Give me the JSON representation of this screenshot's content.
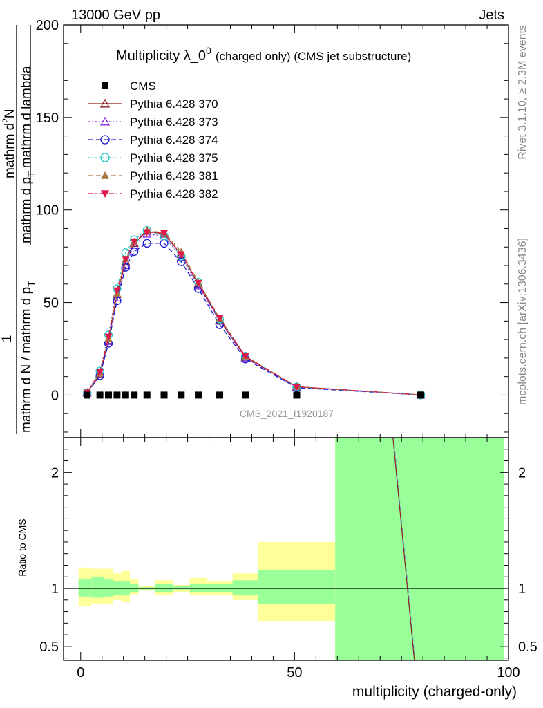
{
  "header": {
    "left": "13000 GeV pp",
    "right": "Jets"
  },
  "side_labels": {
    "rivet": "Rivet 3.1.10, ≥ 2.3M events",
    "mcplots": "mcplots.cern.ch [arXiv:1306.3436]"
  },
  "watermark": "CMS_2021_I1920187",
  "title": {
    "main": "Multiplicity λ_0",
    "superscript": "0",
    "suffix": "(charged only) (CMS jet substructure)"
  },
  "y_label": {
    "numerator": "1",
    "denominator": "mathrm d N / mathrm d p",
    "denominator_sub": "T",
    "denominator_tail": "mathrm d p",
    "denominator_tail_sub": "T",
    "denominator_tail2": "mathrm d lambda"
  },
  "y_label_parts": {
    "num_top": "mathrm d",
    "num_top_sup": "2",
    "num_N": "N",
    "den_a": "mathrm d p",
    "den_a_sub": "T",
    "den_b": "mathrm d lambda",
    "left_num": "1",
    "left_den": "mathrm d N / mathrm d p",
    "left_den_sub": "T"
  },
  "ratio_ylabel": "Ratio to CMS",
  "xlabel": "multiplicity (charged-only)",
  "chart_data": {
    "type": "line",
    "xlabel": "multiplicity (charged-only)",
    "main_ylim": [
      -23,
      200
    ],
    "main_yticks": [
      0,
      50,
      100,
      150,
      200
    ],
    "ratio_ylim": [
      0.38,
      2.3
    ],
    "ratio_yticks": [
      0.5,
      1,
      2
    ],
    "xlim": [
      -4,
      100
    ],
    "xticks": [
      0,
      50,
      100
    ],
    "x": [
      1.5,
      4.5,
      6.5,
      8.5,
      10.5,
      12.5,
      15.5,
      19.5,
      23.5,
      27.5,
      32.5,
      38.5,
      50.5,
      79.5
    ],
    "series": [
      {
        "name": "CMS",
        "color": "#000000",
        "marker": "square",
        "dash": "",
        "values": [
          0,
          0,
          0,
          0,
          0,
          0,
          0,
          0,
          0,
          0,
          0,
          0,
          0,
          0
        ]
      },
      {
        "name": "Pythia 6.428 370",
        "color": "#8b1a1a",
        "marker": "triangle-open",
        "dash": "",
        "values": [
          1.2,
          11.5,
          29.5,
          54.5,
          72,
          82,
          88.5,
          87,
          76,
          60,
          40.5,
          20.5,
          4.5,
          0.1
        ]
      },
      {
        "name": "Pythia 6.428 373",
        "color": "#8a2be2",
        "marker": "triangle-open",
        "dash": "2,3",
        "values": [
          1.2,
          11,
          29,
          52.5,
          70,
          81,
          87,
          86,
          74.5,
          59,
          40,
          20,
          4.3,
          0.1
        ]
      },
      {
        "name": "Pythia 6.428 374",
        "color": "#1a1ad0",
        "marker": "circle-open",
        "dash": "7,4",
        "values": [
          1.1,
          10.5,
          28,
          51,
          69,
          77.5,
          82,
          82,
          72,
          57.5,
          38,
          19.5,
          4,
          0.1
        ]
      },
      {
        "name": "Pythia 6.428 375",
        "color": "#20c8c0",
        "marker": "circle-open",
        "dash": "2,3",
        "values": [
          1.3,
          13,
          32.5,
          57.5,
          77,
          84,
          89,
          86,
          75,
          61,
          41,
          21,
          4.4,
          0.1
        ]
      },
      {
        "name": "Pythia 6.428 381",
        "color": "#a87843",
        "marker": "triangle",
        "dash": "7,4",
        "values": [
          1.3,
          12,
          30.5,
          55,
          73.5,
          83,
          88.5,
          88,
          77.5,
          61,
          41.5,
          21,
          4.6,
          0.1
        ]
      },
      {
        "name": "Pythia 6.428 382",
        "color": "#e0184a",
        "marker": "triangle-down",
        "dash": "7,3,2,3",
        "values": [
          1.3,
          12.5,
          31.5,
          56.5,
          73.5,
          83,
          88,
          87.5,
          76,
          60.5,
          41.5,
          21,
          4.5,
          0.1
        ]
      }
    ],
    "ratio_bands": [
      {
        "x0": -0.5,
        "x1": 2.5,
        "y_lo": 0.85,
        "y_hi": 1.18,
        "g_lo": 0.93,
        "g_hi": 1.08
      },
      {
        "x0": 2.5,
        "x1": 5.5,
        "y_lo": 0.87,
        "y_hi": 1.17,
        "g_lo": 0.92,
        "g_hi": 1.1
      },
      {
        "x0": 5.5,
        "x1": 7.5,
        "y_lo": 0.87,
        "y_hi": 1.17,
        "g_lo": 0.93,
        "g_hi": 1.08
      },
      {
        "x0": 7.5,
        "x1": 9.5,
        "y_lo": 0.9,
        "y_hi": 1.13,
        "g_lo": 0.94,
        "g_hi": 1.06
      },
      {
        "x0": 9.5,
        "x1": 11.5,
        "y_lo": 0.88,
        "y_hi": 1.15,
        "g_lo": 0.94,
        "g_hi": 1.06
      },
      {
        "x0": 11.5,
        "x1": 13.5,
        "y_lo": 0.95,
        "y_hi": 1.08,
        "g_lo": 0.97,
        "g_hi": 1.04
      },
      {
        "x0": 13.5,
        "x1": 17.5,
        "y_lo": 0.98,
        "y_hi": 1.02,
        "g_lo": 0.99,
        "g_hi": 1.01
      },
      {
        "x0": 17.5,
        "x1": 21.5,
        "y_lo": 0.94,
        "y_hi": 1.07,
        "g_lo": 0.97,
        "g_hi": 1.04
      },
      {
        "x0": 21.5,
        "x1": 25.5,
        "y_lo": 0.97,
        "y_hi": 1.03,
        "g_lo": 0.99,
        "g_hi": 1.02
      },
      {
        "x0": 25.5,
        "x1": 29.5,
        "y_lo": 0.94,
        "y_hi": 1.09,
        "g_lo": 0.97,
        "g_hi": 1.04
      },
      {
        "x0": 29.5,
        "x1": 35.5,
        "y_lo": 0.94,
        "y_hi": 1.06,
        "g_lo": 0.97,
        "g_hi": 1.04
      },
      {
        "x0": 35.5,
        "x1": 41.5,
        "y_lo": 0.9,
        "y_hi": 1.13,
        "g_lo": 0.94,
        "g_hi": 1.07
      },
      {
        "x0": 41.5,
        "x1": 59.5,
        "y_lo": 0.72,
        "y_hi": 1.4,
        "g_lo": 0.87,
        "g_hi": 1.16
      },
      {
        "x0": 59.5,
        "x1": 99.5,
        "y_lo": 0.38,
        "y_hi": 2.3,
        "g_lo": 0.38,
        "g_hi": 2.3
      }
    ],
    "ratio_line": {
      "x": [
        73,
        78
      ],
      "y": [
        2.3,
        0.38
      ],
      "color": "#8b1a1a"
    }
  }
}
